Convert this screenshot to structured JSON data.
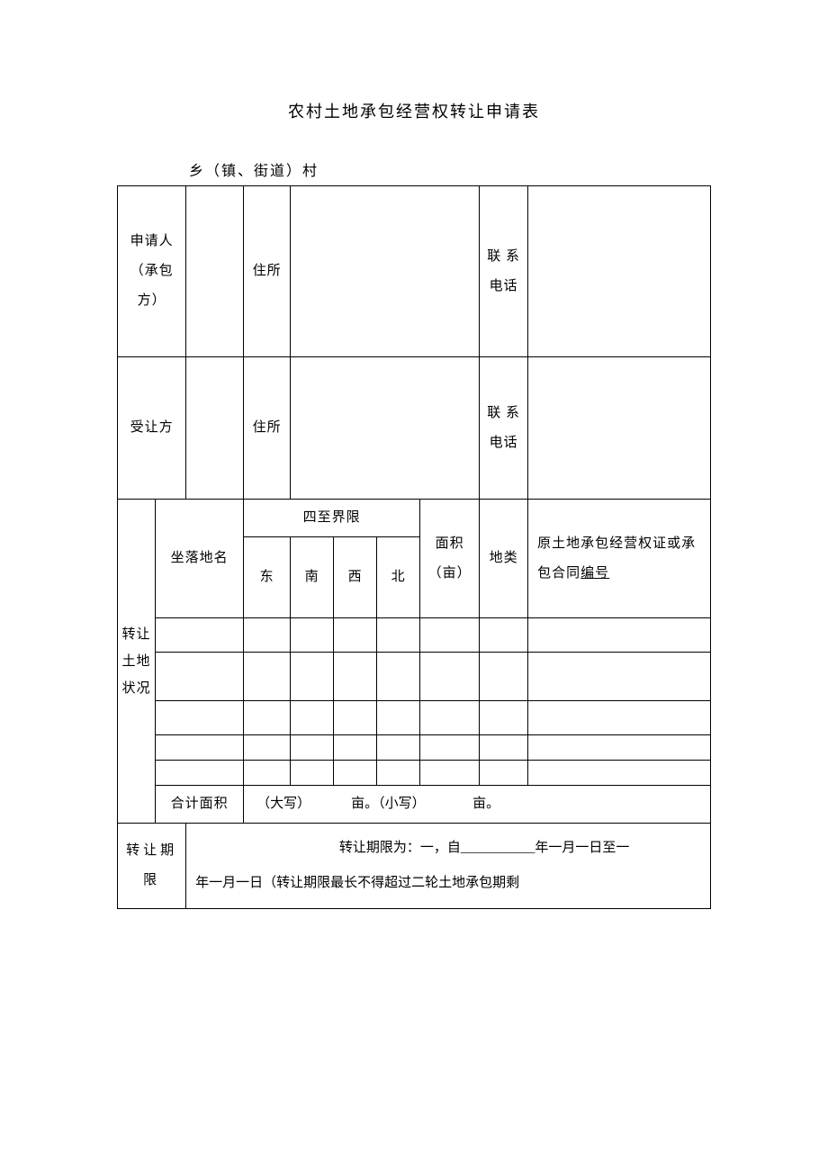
{
  "title": "农村土地承包经营权转让申请表",
  "subtitle": "乡（镇、街道）村",
  "applicant": {
    "label": "申请人（承包方）",
    "address_label": "住所",
    "phone_label": "联 系电话"
  },
  "transferee": {
    "label": "受让方",
    "address_label": "住所",
    "phone_label": "联 系电话"
  },
  "land_status": {
    "side_label": "转让土地状况",
    "location_label": "坐落地名",
    "bounds_label": "四至界限",
    "east": "东",
    "south": "南",
    "west": "西",
    "north": "北",
    "area_label": "面积（亩）",
    "category_label": "地类",
    "cert_label": "原土地承包经营权证或承包合同编号",
    "total_label": "合计面积",
    "total_text_prefix": "（大写）",
    "total_text_mid": "亩。（小写）",
    "total_text_suffix": "亩。"
  },
  "period": {
    "label": "转让期限",
    "line1": "转让期限为：一，自___________年一月一日至一",
    "line2": "年一月一日（转让期限最长不得超过二轮土地承包期剩"
  },
  "bh_text": "编号",
  "colors": {
    "text": "#000000",
    "background": "#ffffff",
    "border": "#000000"
  },
  "fonts": {
    "body_pt": 16,
    "title_pt": 18
  }
}
